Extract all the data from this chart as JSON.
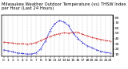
{
  "title": "Milwaukee Weather Outdoor Temperature (vs) THSW Index per Hour (Last 24 Hours)",
  "title_fontsize": 3.8,
  "background_color": "#ffffff",
  "grid_color": "#999999",
  "hours": [
    0,
    1,
    2,
    3,
    4,
    5,
    6,
    7,
    8,
    9,
    10,
    11,
    12,
    13,
    14,
    15,
    16,
    17,
    18,
    19,
    20,
    21,
    22,
    23
  ],
  "temp": [
    33,
    32,
    31,
    30,
    30,
    29,
    30,
    32,
    36,
    40,
    44,
    47,
    49,
    51,
    50,
    52,
    52,
    48,
    45,
    42,
    40,
    38,
    36,
    35
  ],
  "thsw": [
    18,
    16,
    14,
    12,
    11,
    10,
    10,
    12,
    20,
    35,
    55,
    68,
    75,
    72,
    65,
    50,
    40,
    32,
    26,
    22,
    18,
    15,
    13,
    12
  ],
  "temp_color": "#cc0000",
  "thsw_color": "#0000cc",
  "ylim": [
    5,
    85
  ],
  "xlim": [
    0,
    23
  ],
  "yticks": [
    10,
    20,
    30,
    40,
    50,
    60,
    70,
    80
  ],
  "ytick_labels": [
    "10",
    "20",
    "30",
    "40",
    "50",
    "60",
    "70",
    "80"
  ],
  "tick_label_fontsize": 3.2,
  "line_width": 0.7,
  "dot_size": 0.5,
  "figsize": [
    1.6,
    0.87
  ],
  "dpi": 100
}
